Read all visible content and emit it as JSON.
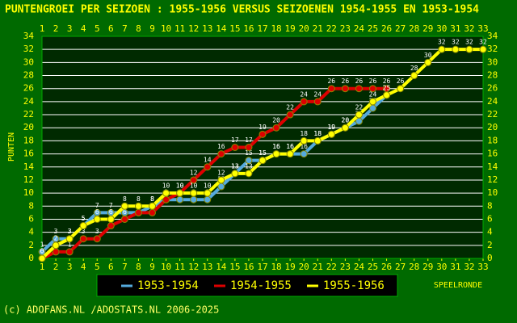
{
  "chart_data": {
    "type": "line",
    "title": "PUNTENGROEI PER SEIZOEN : 1955-1956 VERSUS SEIZOENEN 1954-1955 EN 1953-1954",
    "x_label": "SPEELRONDE",
    "y_label": "PUNTEN",
    "x": [
      1,
      2,
      3,
      4,
      5,
      6,
      7,
      8,
      9,
      10,
      11,
      12,
      13,
      14,
      15,
      16,
      17,
      18,
      19,
      20,
      21,
      22,
      23,
      24,
      25,
      26,
      27,
      28,
      29,
      30,
      31,
      32,
      33
    ],
    "xlim": [
      1,
      33
    ],
    "xticks": [
      1,
      2,
      3,
      4,
      5,
      6,
      7,
      8,
      9,
      10,
      11,
      12,
      13,
      14,
      15,
      16,
      17,
      18,
      19,
      20,
      21,
      22,
      23,
      24,
      25,
      26,
      27,
      28,
      29,
      30,
      31,
      32,
      33
    ],
    "ylim": [
      0,
      34
    ],
    "yticks": [
      0,
      2,
      4,
      6,
      8,
      10,
      12,
      14,
      16,
      18,
      20,
      22,
      24,
      26,
      28,
      30,
      32,
      34
    ],
    "grid": true,
    "series": [
      {
        "name": "1953-1954",
        "color": "#55aadd",
        "values": [
          1,
          3,
          3,
          5,
          7,
          7,
          7,
          7,
          8,
          9,
          9,
          9,
          9,
          11,
          13,
          15,
          15,
          16,
          16,
          16,
          18,
          19,
          20,
          21,
          23,
          25,
          null,
          null,
          null,
          null,
          null,
          null,
          null
        ]
      },
      {
        "name": "1954-1955",
        "color": "#dd0000",
        "values": [
          0,
          1,
          1,
          3,
          3,
          5,
          6,
          7,
          7,
          9,
          10,
          12,
          14,
          16,
          17,
          17,
          19,
          20,
          22,
          24,
          24,
          26,
          26,
          26,
          26,
          26,
          null,
          null,
          null,
          null,
          null,
          null,
          null
        ]
      },
      {
        "name": "1955-1956",
        "color": "#ffff00",
        "values": [
          0,
          2,
          3,
          5,
          6,
          6,
          8,
          8,
          8,
          10,
          10,
          10,
          10,
          12,
          13,
          13,
          15,
          16,
          16,
          18,
          18,
          19,
          20,
          22,
          24,
          25,
          26,
          28,
          30,
          32,
          32,
          32,
          32
        ]
      }
    ]
  },
  "footer": "(c) ADOFANS.NL /ADOSTATS.NL 2006-2025"
}
